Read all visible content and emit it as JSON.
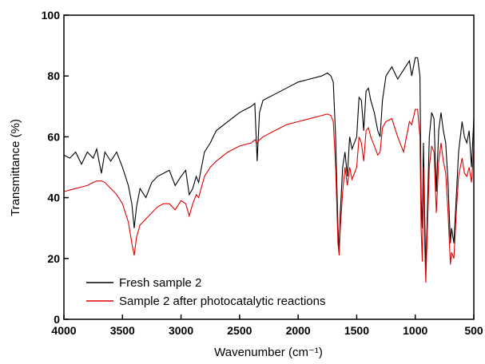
{
  "chart_data": {
    "type": "line",
    "xlabel": "Wavenumber (cm⁻¹)",
    "ylabel": "Transmittance (%)",
    "xlim": [
      4000,
      500
    ],
    "ylim": [
      0,
      100
    ],
    "xticks": [
      4000,
      3500,
      3000,
      2500,
      2000,
      1500,
      1000,
      500
    ],
    "yticks": [
      0,
      20,
      40,
      60,
      80,
      100
    ],
    "legend": "lower left",
    "x": [
      4000,
      3950,
      3900,
      3850,
      3800,
      3750,
      3720,
      3680,
      3650,
      3600,
      3550,
      3500,
      3450,
      3420,
      3400,
      3380,
      3350,
      3300,
      3250,
      3200,
      3150,
      3100,
      3050,
      3000,
      2960,
      2930,
      2900,
      2870,
      2850,
      2800,
      2750,
      2700,
      2600,
      2500,
      2400,
      2370,
      2350,
      2330,
      2300,
      2200,
      2100,
      2000,
      1900,
      1800,
      1750,
      1720,
      1700,
      1680,
      1660,
      1650,
      1640,
      1620,
      1600,
      1580,
      1560,
      1540,
      1500,
      1480,
      1460,
      1440,
      1420,
      1400,
      1380,
      1350,
      1320,
      1300,
      1280,
      1250,
      1200,
      1150,
      1100,
      1050,
      1030,
      1000,
      980,
      960,
      950,
      940,
      930,
      920,
      910,
      900,
      880,
      860,
      840,
      820,
      800,
      780,
      760,
      740,
      720,
      700,
      690,
      670,
      650,
      630,
      600,
      580,
      560,
      540,
      520,
      500
    ],
    "series": [
      {
        "name": "Fresh sample 2",
        "color": "#000000",
        "values": [
          54,
          53,
          55,
          51,
          55,
          53,
          56,
          48,
          55,
          52,
          55,
          50,
          44,
          38,
          30,
          37,
          43,
          40,
          45,
          47,
          48,
          49,
          44,
          47,
          49,
          41,
          43,
          47,
          45,
          55,
          58,
          62,
          65,
          68,
          70,
          71,
          52,
          68,
          72,
          74,
          76,
          78,
          79,
          80,
          81,
          80,
          78,
          60,
          30,
          22,
          35,
          50,
          55,
          47,
          60,
          56,
          60,
          73,
          72,
          62,
          75,
          76,
          72,
          68,
          62,
          60,
          72,
          80,
          83,
          79,
          82,
          85,
          80,
          86,
          86,
          80,
          40,
          30,
          58,
          35,
          16,
          30,
          60,
          68,
          66,
          42,
          62,
          68,
          62,
          58,
          45,
          25,
          30,
          25,
          40,
          55,
          65,
          60,
          58,
          62,
          50,
          66
        ]
      },
      {
        "name": "Sample 2 after photocatalytic reactions",
        "color": "#e00000",
        "values": [
          42,
          42.5,
          43,
          43.5,
          44,
          45,
          45.5,
          45.5,
          45,
          43,
          41,
          38,
          32,
          25,
          21,
          27,
          31,
          33,
          35,
          37,
          38,
          38,
          36,
          39,
          38,
          34,
          38,
          41,
          40,
          47,
          50,
          52,
          55,
          57,
          58,
          59,
          58,
          59,
          60,
          62,
          64,
          65,
          66,
          67,
          67.5,
          67,
          65,
          50,
          25,
          21,
          30,
          42,
          50,
          44,
          50,
          46,
          50,
          60,
          58,
          52,
          62,
          63,
          60,
          57,
          54,
          55,
          63,
          65,
          66,
          60,
          55,
          65,
          64,
          69,
          69,
          60,
          30,
          19,
          50,
          25,
          12,
          25,
          50,
          57,
          55,
          35,
          52,
          58,
          52,
          48,
          35,
          18,
          22,
          20,
          35,
          47,
          53,
          48,
          47,
          50,
          45,
          56
        ]
      }
    ]
  }
}
